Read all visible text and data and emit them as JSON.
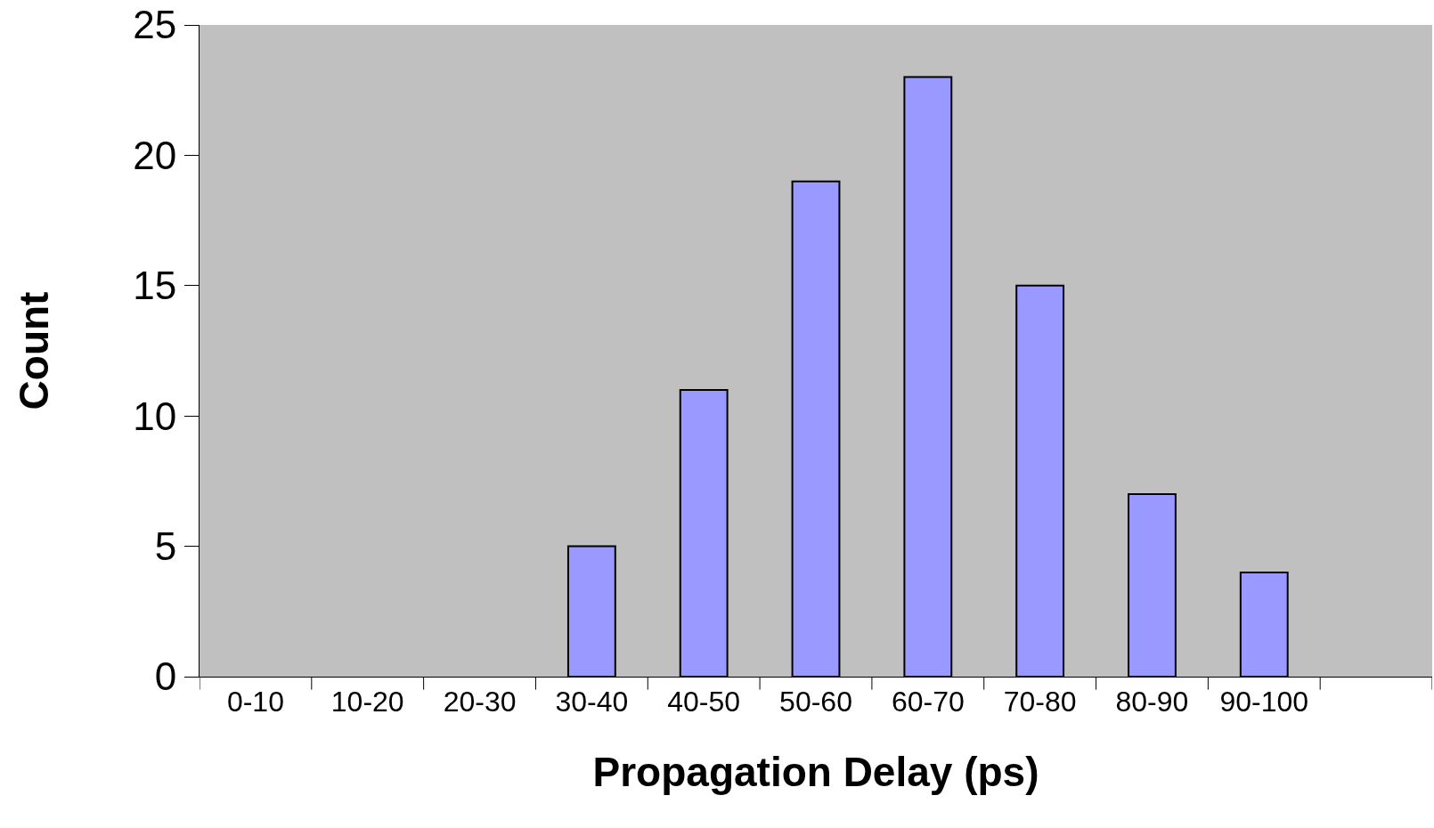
{
  "chart_data": {
    "type": "bar",
    "xlabel": "Propagation Delay (ps)",
    "ylabel": "Count",
    "categories": [
      "0-10",
      "10-20",
      "20-30",
      "30-40",
      "40-50",
      "50-60",
      "60-70",
      "70-80",
      "80-90",
      "90-100",
      null
    ],
    "values": [
      0,
      0,
      0,
      5,
      11,
      19,
      23,
      15,
      7,
      4,
      null
    ],
    "color": "#9999ff",
    "ylim": [
      0,
      25
    ],
    "yticks": [
      0,
      5,
      10,
      15,
      20,
      25
    ],
    "grid": false
  }
}
